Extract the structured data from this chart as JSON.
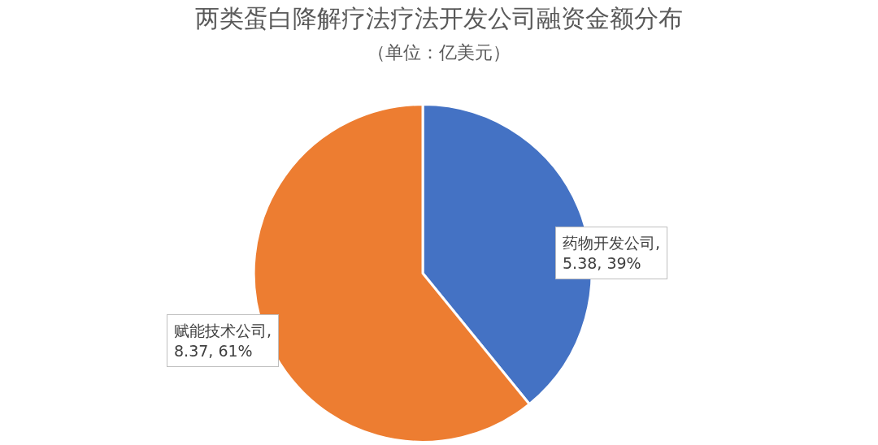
{
  "chart_data": {
    "type": "pie",
    "title": "两类蛋白降解疗法疗法开发公司融资金额分布",
    "subtitle": "（单位：亿美元）",
    "categories": [
      "药物开发公司",
      "赋能技术公司"
    ],
    "values": [
      5.38,
      8.37
    ],
    "colors": [
      "#4472c4",
      "#ed7d31"
    ],
    "value_labels": [
      ",\n5.38, 39%",
      ",\n8.37, 61%"
    ],
    "legend": false
  }
}
